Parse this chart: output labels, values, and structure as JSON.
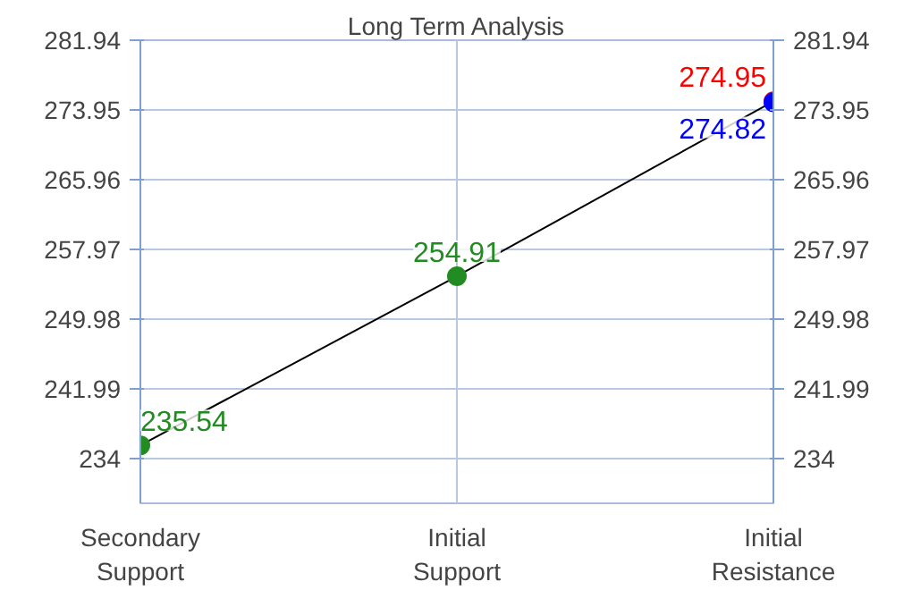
{
  "chart_data": {
    "type": "scatter",
    "title": "Long Term Analysis",
    "categories": [
      "Secondary\nSupport",
      "Initial\nSupport",
      "Initial\nResistance"
    ],
    "series": [
      {
        "type": "line",
        "color": "#000000",
        "values": [
          235.54,
          254.91,
          274.95
        ],
        "marker": "none"
      },
      {
        "color": "#228b22",
        "values": [
          235.54,
          254.91,
          null
        ],
        "value_labels": [
          "235.54",
          "254.91",
          null
        ]
      },
      {
        "color": "#ff0000",
        "values": [
          null,
          null,
          274.95
        ],
        "value_labels": [
          null,
          null,
          "274.95"
        ]
      },
      {
        "color": "#0000ff",
        "values": [
          null,
          null,
          274.82
        ],
        "value_labels": [
          null,
          null,
          "274.82"
        ]
      }
    ],
    "marker": "circle",
    "ylim": [
      228.9,
      281.94
    ],
    "yticks": [
      234,
      241.99,
      249.98,
      257.97,
      265.96,
      273.95,
      281.94
    ],
    "y2lim": [
      228.9,
      281.94
    ],
    "y2ticks": [
      234,
      241.99,
      249.98,
      257.97,
      265.96,
      273.95,
      281.94
    ],
    "grid": true
  }
}
